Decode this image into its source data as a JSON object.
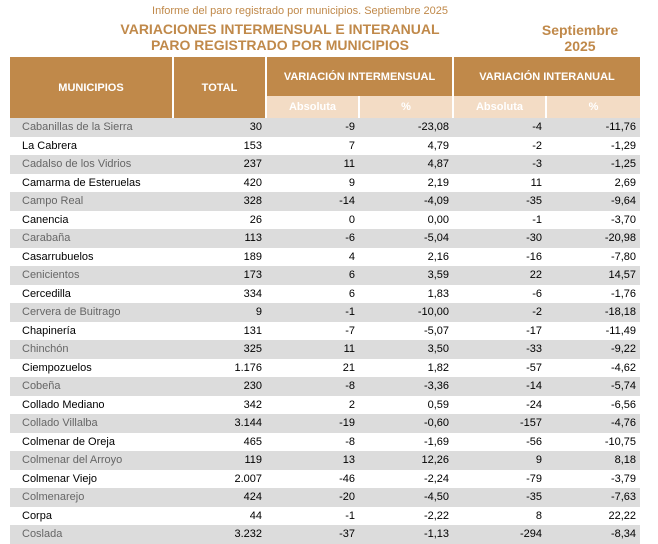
{
  "header": {
    "subtitle": "Informe del paro registrado por municipios. Septiembre 2025",
    "title_line1": "VARIACIONES INTERMENSUAL E INTERANUAL",
    "title_line2": "PARO REGISTRADO POR MUNICIPIOS",
    "date_line1": "Septiembre",
    "date_line2": "2025"
  },
  "table": {
    "col_municipios": "MUNICIPIOS",
    "col_total": "TOTAL",
    "group_intermensual": "VARIACIÓN INTERMENSUAL",
    "group_interanual": "VARIACIÓN INTERANUAL",
    "sub_absoluta": "Absoluta",
    "sub_pct": "%",
    "rows": [
      {
        "name": "Cabanillas de la Sierra",
        "total": "30",
        "im_abs": "-9",
        "im_pct": "-23,08",
        "ia_abs": "-4",
        "ia_pct": "-11,76"
      },
      {
        "name": "La Cabrera",
        "total": "153",
        "im_abs": "7",
        "im_pct": "4,79",
        "ia_abs": "-2",
        "ia_pct": "-1,29"
      },
      {
        "name": "Cadalso de los Vidrios",
        "total": "237",
        "im_abs": "11",
        "im_pct": "4,87",
        "ia_abs": "-3",
        "ia_pct": "-1,25"
      },
      {
        "name": "Camarma de Esteruelas",
        "total": "420",
        "im_abs": "9",
        "im_pct": "2,19",
        "ia_abs": "11",
        "ia_pct": "2,69"
      },
      {
        "name": "Campo Real",
        "total": "328",
        "im_abs": "-14",
        "im_pct": "-4,09",
        "ia_abs": "-35",
        "ia_pct": "-9,64"
      },
      {
        "name": "Canencia",
        "total": "26",
        "im_abs": "0",
        "im_pct": "0,00",
        "ia_abs": "-1",
        "ia_pct": "-3,70"
      },
      {
        "name": "Carabaña",
        "total": "113",
        "im_abs": "-6",
        "im_pct": "-5,04",
        "ia_abs": "-30",
        "ia_pct": "-20,98"
      },
      {
        "name": "Casarrubuelos",
        "total": "189",
        "im_abs": "4",
        "im_pct": "2,16",
        "ia_abs": "-16",
        "ia_pct": "-7,80"
      },
      {
        "name": "Cenicientos",
        "total": "173",
        "im_abs": "6",
        "im_pct": "3,59",
        "ia_abs": "22",
        "ia_pct": "14,57"
      },
      {
        "name": "Cercedilla",
        "total": "334",
        "im_abs": "6",
        "im_pct": "1,83",
        "ia_abs": "-6",
        "ia_pct": "-1,76"
      },
      {
        "name": "Cervera de Buitrago",
        "total": "9",
        "im_abs": "-1",
        "im_pct": "-10,00",
        "ia_abs": "-2",
        "ia_pct": "-18,18"
      },
      {
        "name": "Chapinería",
        "total": "131",
        "im_abs": "-7",
        "im_pct": "-5,07",
        "ia_abs": "-17",
        "ia_pct": "-11,49"
      },
      {
        "name": "Chinchón",
        "total": "325",
        "im_abs": "11",
        "im_pct": "3,50",
        "ia_abs": "-33",
        "ia_pct": "-9,22"
      },
      {
        "name": "Ciempozuelos",
        "total": "1.176",
        "im_abs": "21",
        "im_pct": "1,82",
        "ia_abs": "-57",
        "ia_pct": "-4,62"
      },
      {
        "name": "Cobeña",
        "total": "230",
        "im_abs": "-8",
        "im_pct": "-3,36",
        "ia_abs": "-14",
        "ia_pct": "-5,74"
      },
      {
        "name": "Collado Mediano",
        "total": "342",
        "im_abs": "2",
        "im_pct": "0,59",
        "ia_abs": "-24",
        "ia_pct": "-6,56"
      },
      {
        "name": "Collado Villalba",
        "total": "3.144",
        "im_abs": "-19",
        "im_pct": "-0,60",
        "ia_abs": "-157",
        "ia_pct": "-4,76"
      },
      {
        "name": "Colmenar de Oreja",
        "total": "465",
        "im_abs": "-8",
        "im_pct": "-1,69",
        "ia_abs": "-56",
        "ia_pct": "-10,75"
      },
      {
        "name": "Colmenar del Arroyo",
        "total": "119",
        "im_abs": "13",
        "im_pct": "12,26",
        "ia_abs": "9",
        "ia_pct": "8,18"
      },
      {
        "name": "Colmenar Viejo",
        "total": "2.007",
        "im_abs": "-46",
        "im_pct": "-2,24",
        "ia_abs": "-79",
        "ia_pct": "-3,79"
      },
      {
        "name": "Colmenarejo",
        "total": "424",
        "im_abs": "-20",
        "im_pct": "-4,50",
        "ia_abs": "-35",
        "ia_pct": "-7,63"
      },
      {
        "name": "Corpa",
        "total": "44",
        "im_abs": "-1",
        "im_pct": "-2,22",
        "ia_abs": "8",
        "ia_pct": "22,22"
      },
      {
        "name": "Coslada",
        "total": "3.232",
        "im_abs": "-37",
        "im_pct": "-1,13",
        "ia_abs": "-294",
        "ia_pct": "-8,34"
      }
    ]
  }
}
